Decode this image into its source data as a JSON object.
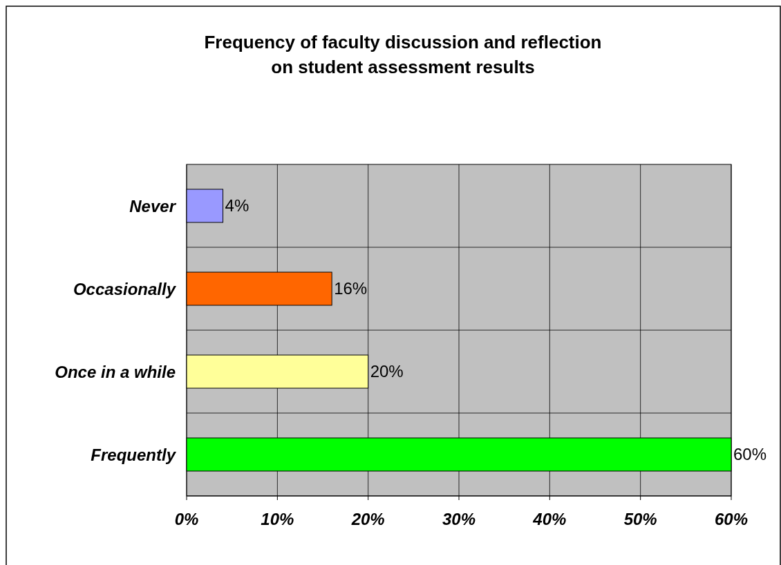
{
  "chart_data": {
    "type": "bar",
    "orientation": "horizontal",
    "title": "Frequency of faculty discussion and reflection\non student assessment results",
    "categories": [
      "Never",
      "Occasionally",
      "Once in a while",
      "Frequently"
    ],
    "values": [
      4,
      16,
      20,
      60
    ],
    "colors": [
      "#9999ff",
      "#ff6600",
      "#ffff99",
      "#00ff00"
    ],
    "value_labels": [
      "4%",
      "16%",
      "20%",
      "60%"
    ],
    "xlim": [
      0,
      60
    ],
    "xticks": [
      {
        "value": 0,
        "label": "0%"
      },
      {
        "value": 10,
        "label": "10%"
      },
      {
        "value": 20,
        "label": "20%"
      },
      {
        "value": 30,
        "label": "30%"
      },
      {
        "value": 40,
        "label": "40%"
      },
      {
        "value": 50,
        "label": "50%"
      },
      {
        "value": 60,
        "label": "60%"
      }
    ],
    "grid": true
  }
}
